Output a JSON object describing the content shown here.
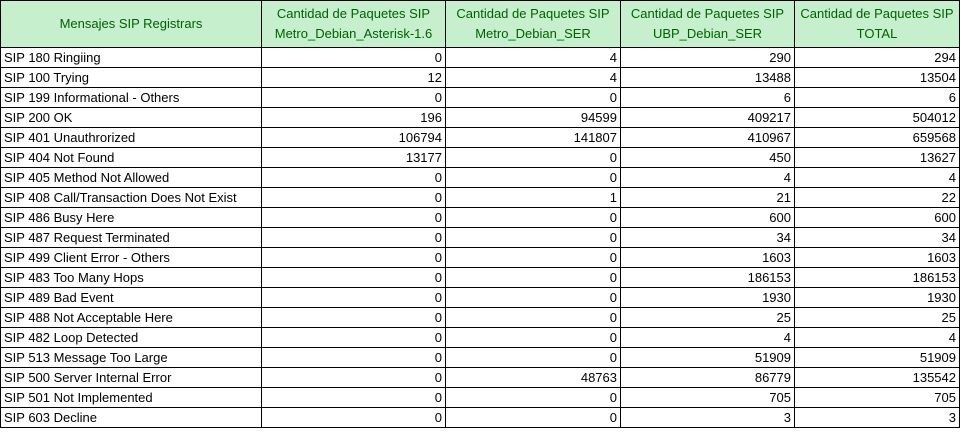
{
  "table": {
    "headers": [
      [
        "Mensajes SIP Registrars"
      ],
      [
        "Cantidad de Paquetes SIP",
        "Metro_Debian_Asterisk-1.6"
      ],
      [
        "Cantidad de Paquetes SIP",
        "Metro_Debian_SER"
      ],
      [
        "Cantidad de Paquetes SIP",
        "UBP_Debian_SER"
      ],
      [
        "Cantidad de Paquetes SIP",
        "TOTAL"
      ]
    ],
    "rows": [
      [
        "SIP 180 Ringiing",
        "0",
        "4",
        "290",
        "294"
      ],
      [
        "SIP 100 Trying",
        "12",
        "4",
        "13488",
        "13504"
      ],
      [
        "SIP 199 Informational - Others",
        "0",
        "0",
        "6",
        "6"
      ],
      [
        "SIP 200 OK",
        "196",
        "94599",
        "409217",
        "504012"
      ],
      [
        "SIP 401 Unauthrorized",
        "106794",
        "141807",
        "410967",
        "659568"
      ],
      [
        "SIP 404 Not Found",
        "13177",
        "0",
        "450",
        "13627"
      ],
      [
        "SIP 405 Method Not Allowed",
        "0",
        "0",
        "4",
        "4"
      ],
      [
        "SIP 408 Call/Transaction Does Not Exist",
        "0",
        "1",
        "21",
        "22"
      ],
      [
        "SIP 486 Busy Here",
        "0",
        "0",
        "600",
        "600"
      ],
      [
        "SIP 487 Request Terminated",
        "0",
        "0",
        "34",
        "34"
      ],
      [
        "SIP 499 Client Error - Others",
        "0",
        "0",
        "1603",
        "1603"
      ],
      [
        "SIP 483 Too Many Hops",
        "0",
        "0",
        "186153",
        "186153"
      ],
      [
        "SIP 489 Bad Event",
        "0",
        "0",
        "1930",
        "1930"
      ],
      [
        "SIP 488 Not Acceptable Here",
        "0",
        "0",
        "25",
        "25"
      ],
      [
        "SIP 482 Loop Detected",
        "0",
        "0",
        "4",
        "4"
      ],
      [
        "SIP 513 Message Too Large",
        "0",
        "0",
        "51909",
        "51909"
      ],
      [
        "SIP 500 Server Internal Error",
        "0",
        "48763",
        "86779",
        "135542"
      ],
      [
        "SIP 501 Not Implemented",
        "0",
        "0",
        "705",
        "705"
      ],
      [
        "SIP 603 Decline",
        "0",
        "0",
        "3",
        "3"
      ]
    ]
  },
  "colors": {
    "header_fill": "#c6efce",
    "header_text": "#006100",
    "border": "#000000"
  }
}
